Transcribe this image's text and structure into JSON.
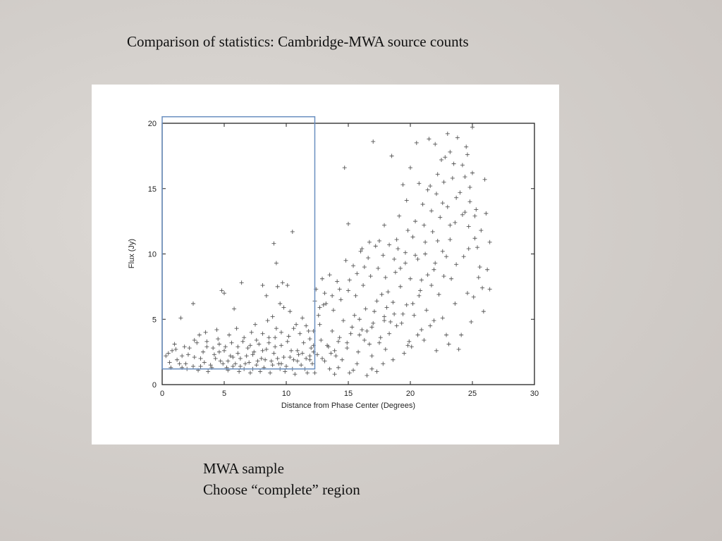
{
  "slide": {
    "title": "Comparison of statistics:  Cambridge-MWA source counts",
    "caption_line1": "MWA sample",
    "caption_line2": "Choose “complete” region"
  },
  "chart_data": {
    "type": "scatter",
    "marker": "+",
    "xlabel": "Distance from Phase Center (Degrees)",
    "ylabel": "Flux (Jy)",
    "xlim": [
      0,
      30
    ],
    "ylim": [
      0,
      20
    ],
    "xticks": [
      0,
      5,
      10,
      15,
      20,
      25,
      30
    ],
    "yticks": [
      0,
      5,
      10,
      15,
      20
    ],
    "grid": false,
    "point_color": "#555555",
    "selection_region": {
      "x": [
        0,
        12.3
      ],
      "y": [
        1.2,
        20.5
      ],
      "color": "#6a8fc0"
    },
    "points": [
      [
        0.5,
        2.4
      ],
      [
        0.8,
        2.6
      ],
      [
        1.2,
        1.9
      ],
      [
        1.6,
        2.2
      ],
      [
        1.9,
        1.6
      ],
      [
        2.2,
        2.8
      ],
      [
        2.5,
        1.4
      ],
      [
        2.8,
        3.2
      ],
      [
        3.1,
        2.0
      ],
      [
        3.4,
        1.7
      ],
      [
        3.6,
        2.9
      ],
      [
        3.9,
        1.5
      ],
      [
        4.2,
        2.3
      ],
      [
        4.5,
        3.5
      ],
      [
        4.7,
        1.8
      ],
      [
        5.0,
        2.6
      ],
      [
        5.2,
        1.3
      ],
      [
        5.4,
        3.8
      ],
      [
        5.7,
        2.1
      ],
      [
        5.9,
        1.6
      ],
      [
        6.1,
        2.9
      ],
      [
        6.3,
        1.4
      ],
      [
        6.5,
        3.3
      ],
      [
        6.8,
        2.2
      ],
      [
        7.0,
        1.7
      ],
      [
        7.2,
        4.0
      ],
      [
        7.4,
        2.5
      ],
      [
        7.6,
        1.5
      ],
      [
        7.8,
        3.1
      ],
      [
        8.0,
        2.0
      ],
      [
        8.2,
        1.3
      ],
      [
        8.4,
        2.7
      ],
      [
        8.6,
        3.6
      ],
      [
        8.8,
        1.8
      ],
      [
        9.0,
        2.4
      ],
      [
        9.2,
        4.3
      ],
      [
        9.4,
        1.6
      ],
      [
        9.6,
        3.0
      ],
      [
        9.8,
        2.1
      ],
      [
        10.0,
        1.4
      ],
      [
        10.2,
        3.7
      ],
      [
        10.4,
        2.6
      ],
      [
        10.6,
        1.9
      ],
      [
        10.8,
        4.6
      ],
      [
        11.0,
        2.3
      ],
      [
        11.2,
        1.5
      ],
      [
        11.4,
        3.2
      ],
      [
        11.6,
        2.0
      ],
      [
        11.8,
        4.1
      ],
      [
        12.0,
        2.8
      ],
      [
        1.0,
        3.1
      ],
      [
        2.0,
        1.2
      ],
      [
        3.0,
        3.8
      ],
      [
        4.0,
        1.3
      ],
      [
        4.4,
        4.2
      ],
      [
        6.0,
        4.3
      ],
      [
        6.6,
        1.2
      ],
      [
        7.3,
        1.2
      ],
      [
        8.5,
        4.9
      ],
      [
        9.5,
        1.2
      ],
      [
        10.5,
        1.2
      ],
      [
        11.5,
        1.2
      ],
      [
        12.1,
        1.6
      ],
      [
        3.3,
        2.5
      ],
      [
        5.5,
        2.2
      ],
      [
        6.9,
        2.8
      ],
      [
        8.1,
        2.6
      ],
      [
        9.1,
        2.9
      ],
      [
        10.9,
        2.6
      ],
      [
        11.9,
        2.2
      ],
      [
        1.5,
        5.1
      ],
      [
        2.5,
        6.2
      ],
      [
        4.8,
        7.2
      ],
      [
        5.8,
        5.8
      ],
      [
        6.4,
        7.8
      ],
      [
        7.5,
        4.6
      ],
      [
        8.4,
        6.8
      ],
      [
        8.9,
        5.2
      ],
      [
        9.5,
        6.2
      ],
      [
        10.3,
        5.6
      ],
      [
        5.0,
        7.0
      ],
      [
        9.7,
        7.8
      ],
      [
        8.1,
        7.6
      ],
      [
        9.3,
        7.5
      ],
      [
        10.1,
        7.6
      ],
      [
        9.2,
        9.3
      ],
      [
        9.0,
        10.8
      ],
      [
        10.5,
        11.7
      ],
      [
        9.8,
        5.9
      ],
      [
        11.3,
        5.1
      ],
      [
        12.5,
        2.3
      ],
      [
        12.8,
        3.4
      ],
      [
        13.1,
        1.8
      ],
      [
        13.4,
        2.9
      ],
      [
        13.7,
        4.1
      ],
      [
        14.0,
        2.2
      ],
      [
        14.3,
        3.6
      ],
      [
        14.6,
        4.9
      ],
      [
        14.9,
        2.8
      ],
      [
        15.2,
        3.9
      ],
      [
        15.5,
        5.3
      ],
      [
        15.8,
        2.5
      ],
      [
        16.1,
        4.2
      ],
      [
        16.4,
        5.8
      ],
      [
        16.7,
        3.1
      ],
      [
        17.0,
        4.7
      ],
      [
        17.3,
        6.4
      ],
      [
        17.6,
        3.6
      ],
      [
        17.9,
        5.2
      ],
      [
        18.2,
        7.1
      ],
      [
        12.6,
        5.3
      ],
      [
        13.0,
        6.1
      ],
      [
        13.8,
        5.7
      ],
      [
        14.4,
        6.5
      ],
      [
        15.0,
        7.2
      ],
      [
        15.6,
        6.8
      ],
      [
        16.2,
        7.6
      ],
      [
        16.8,
        8.3
      ],
      [
        17.4,
        8.9
      ],
      [
        18.0,
        8.2
      ],
      [
        12.4,
        7.3
      ],
      [
        12.9,
        8.1
      ],
      [
        13.5,
        8.4
      ],
      [
        14.1,
        7.9
      ],
      [
        14.8,
        9.5
      ],
      [
        15.4,
        9.1
      ],
      [
        16.0,
        10.2
      ],
      [
        16.6,
        9.7
      ],
      [
        17.2,
        10.6
      ],
      [
        17.8,
        9.9
      ],
      [
        14.7,
        16.6
      ],
      [
        15.0,
        12.3
      ],
      [
        17.0,
        18.6
      ],
      [
        16.1,
        10.4
      ],
      [
        13.2,
        6.2
      ],
      [
        12.7,
        4.6
      ],
      [
        13.3,
        3.0
      ],
      [
        14.5,
        1.9
      ],
      [
        15.7,
        1.6
      ],
      [
        16.9,
        2.2
      ],
      [
        18.4,
        4.8
      ],
      [
        18.6,
        6.3
      ],
      [
        18.8,
        8.6
      ],
      [
        19.0,
        10.4
      ],
      [
        19.2,
        7.5
      ],
      [
        19.4,
        5.4
      ],
      [
        19.6,
        9.3
      ],
      [
        19.8,
        11.8
      ],
      [
        20.0,
        8.1
      ],
      [
        20.2,
        6.2
      ],
      [
        20.4,
        12.5
      ],
      [
        20.6,
        9.6
      ],
      [
        20.8,
        7.2
      ],
      [
        21.0,
        13.8
      ],
      [
        21.2,
        10.9
      ],
      [
        21.4,
        8.4
      ],
      [
        21.6,
        15.2
      ],
      [
        21.8,
        11.7
      ],
      [
        22.0,
        9.3
      ],
      [
        22.2,
        16.1
      ],
      [
        22.4,
        12.8
      ],
      [
        22.6,
        10.2
      ],
      [
        22.8,
        17.4
      ],
      [
        23.0,
        13.6
      ],
      [
        23.2,
        11.1
      ],
      [
        23.4,
        15.8
      ],
      [
        23.6,
        12.4
      ],
      [
        23.8,
        18.9
      ],
      [
        24.0,
        14.7
      ],
      [
        24.2,
        16.8
      ],
      [
        24.4,
        13.2
      ],
      [
        24.6,
        17.6
      ],
      [
        24.8,
        15.1
      ],
      [
        25.0,
        19.7
      ],
      [
        25.2,
        12.9
      ],
      [
        25.4,
        10.5
      ],
      [
        25.6,
        9.0
      ],
      [
        25.8,
        7.4
      ],
      [
        26.0,
        15.7
      ],
      [
        26.2,
        8.8
      ],
      [
        26.4,
        10.9
      ],
      [
        26.4,
        7.3
      ],
      [
        25.9,
        5.6
      ],
      [
        24.9,
        4.8
      ],
      [
        23.9,
        2.7
      ],
      [
        22.9,
        3.8
      ],
      [
        21.9,
        4.9
      ],
      [
        20.9,
        4.2
      ],
      [
        19.9,
        3.3
      ],
      [
        18.9,
        4.5
      ],
      [
        18.5,
        17.5
      ],
      [
        19.4,
        15.3
      ],
      [
        20.5,
        18.5
      ],
      [
        21.5,
        18.8
      ],
      [
        22.5,
        17.2
      ],
      [
        23.5,
        16.9
      ],
      [
        24.5,
        18.2
      ],
      [
        20.0,
        16.6
      ],
      [
        22.0,
        18.4
      ],
      [
        23.0,
        19.2
      ],
      [
        25.1,
        6.7
      ],
      [
        24.3,
        9.8
      ],
      [
        23.3,
        8.1
      ],
      [
        22.3,
        6.9
      ],
      [
        21.3,
        5.7
      ],
      [
        20.3,
        5.3
      ],
      [
        19.3,
        4.7
      ],
      [
        18.3,
        3.9
      ],
      [
        17.5,
        3.2
      ],
      [
        16.5,
        4.1
      ],
      [
        12.2,
        3.0
      ],
      [
        13.6,
        2.4
      ],
      [
        14.2,
        3.3
      ],
      [
        15.3,
        4.4
      ],
      [
        15.9,
        5.0
      ],
      [
        16.3,
        3.4
      ],
      [
        17.1,
        5.6
      ],
      [
        17.7,
        6.9
      ],
      [
        18.1,
        5.9
      ],
      [
        18.7,
        9.6
      ],
      [
        19.1,
        12.9
      ],
      [
        19.7,
        14.1
      ],
      [
        20.7,
        15.4
      ],
      [
        21.1,
        12.2
      ],
      [
        21.7,
        13.3
      ],
      [
        22.1,
        14.6
      ],
      [
        22.7,
        15.5
      ],
      [
        23.7,
        14.3
      ],
      [
        24.7,
        12.1
      ],
      [
        25.3,
        13.4
      ],
      [
        4.3,
        2.0
      ],
      [
        3.7,
        1.0
      ],
      [
        2.9,
        1.1
      ],
      [
        1.4,
        1.6
      ],
      [
        0.3,
        2.2
      ],
      [
        0.7,
        1.3
      ],
      [
        1.8,
        2.9
      ],
      [
        2.6,
        3.4
      ],
      [
        3.5,
        4.0
      ],
      [
        4.6,
        3.1
      ],
      [
        5.3,
        1.1
      ],
      [
        6.2,
        1.0
      ],
      [
        7.1,
        0.9
      ],
      [
        7.9,
        1.0
      ],
      [
        8.7,
        0.9
      ],
      [
        9.9,
        1.0
      ],
      [
        10.7,
        0.8
      ],
      [
        11.7,
        0.9
      ],
      [
        12.3,
        0.9
      ],
      [
        13.9,
        0.8
      ],
      [
        14.2,
        1.3
      ],
      [
        15.4,
        1.1
      ],
      [
        16.5,
        0.7
      ],
      [
        17.3,
        1.0
      ],
      [
        15.1,
        0.9
      ],
      [
        13.5,
        1.2
      ],
      [
        16.9,
        1.2
      ],
      [
        17.8,
        1.6
      ],
      [
        18.6,
        1.9
      ],
      [
        19.5,
        2.4
      ],
      [
        20.1,
        2.9
      ],
      [
        21.1,
        3.4
      ],
      [
        22.1,
        2.6
      ],
      [
        23.1,
        3.1
      ],
      [
        24.1,
        3.8
      ],
      [
        20.6,
        3.8
      ],
      [
        19.8,
        3.0
      ],
      [
        18.0,
        2.7
      ],
      [
        21.6,
        4.5
      ],
      [
        22.6,
        5.1
      ],
      [
        23.6,
        6.2
      ],
      [
        24.6,
        7.0
      ],
      [
        25.5,
        8.2
      ],
      [
        25.7,
        11.8
      ],
      [
        26.1,
        13.1
      ],
      [
        25.0,
        16.2
      ],
      [
        24.4,
        15.9
      ],
      [
        23.2,
        17.8
      ],
      [
        22.6,
        13.9
      ],
      [
        21.4,
        14.9
      ],
      [
        20.2,
        11.3
      ],
      [
        19.6,
        10.1
      ],
      [
        18.9,
        11.1
      ],
      [
        18.3,
        10.7
      ],
      [
        17.9,
        12.2
      ],
      [
        17.5,
        11.0
      ],
      [
        16.7,
        10.9
      ],
      [
        16.3,
        9.0
      ],
      [
        15.7,
        8.5
      ],
      [
        15.1,
        8.0
      ],
      [
        14.3,
        7.3
      ],
      [
        13.7,
        6.8
      ],
      [
        13.1,
        7.0
      ],
      [
        12.7,
        5.9
      ],
      [
        12.3,
        6.4
      ],
      [
        12.2,
        4.1
      ],
      [
        11.9,
        3.5
      ],
      [
        11.6,
        4.5
      ],
      [
        11.1,
        3.9
      ],
      [
        10.6,
        4.3
      ],
      [
        10.1,
        3.3
      ],
      [
        9.6,
        4.0
      ],
      [
        9.1,
        3.6
      ],
      [
        8.6,
        3.2
      ],
      [
        8.1,
        3.9
      ],
      [
        7.6,
        3.4
      ],
      [
        7.1,
        3.0
      ],
      [
        6.6,
        3.6
      ],
      [
        6.1,
        2.4
      ],
      [
        5.6,
        3.2
      ],
      [
        5.1,
        2.9
      ],
      [
        4.6,
        2.5
      ],
      [
        4.1,
        2.8
      ],
      [
        3.6,
        3.3
      ],
      [
        3.1,
        1.4
      ],
      [
        2.6,
        2.1
      ],
      [
        2.1,
        2.3
      ],
      [
        1.6,
        1.3
      ],
      [
        1.1,
        2.7
      ],
      [
        0.6,
        1.7
      ],
      [
        9.3,
        2.0
      ],
      [
        8.3,
        1.9
      ],
      [
        7.3,
        2.3
      ],
      [
        6.3,
        2.0
      ],
      [
        5.3,
        1.8
      ],
      [
        10.3,
        2.1
      ],
      [
        11.3,
        2.4
      ],
      [
        12.2,
        2.5
      ],
      [
        9.6,
        1.6
      ],
      [
        8.9,
        1.5
      ],
      [
        7.7,
        1.8
      ],
      [
        6.7,
        1.6
      ],
      [
        5.7,
        1.4
      ],
      [
        4.9,
        1.6
      ],
      [
        10.9,
        1.8
      ],
      [
        11.9,
        1.9
      ],
      [
        12.9,
        2.0
      ],
      [
        13.9,
        2.6
      ],
      [
        14.9,
        3.2
      ],
      [
        15.9,
        3.8
      ],
      [
        16.9,
        4.4
      ],
      [
        17.9,
        4.9
      ],
      [
        18.7,
        5.4
      ],
      [
        19.7,
        6.1
      ],
      [
        20.7,
        6.8
      ],
      [
        21.7,
        7.6
      ],
      [
        22.7,
        8.3
      ],
      [
        23.7,
        9.2
      ],
      [
        24.7,
        10.4
      ],
      [
        25.2,
        11.2
      ],
      [
        19.2,
        8.9
      ],
      [
        20.4,
        9.9
      ],
      [
        21.2,
        10.0
      ],
      [
        22.2,
        11.0
      ],
      [
        23.2,
        12.2
      ],
      [
        24.2,
        13.0
      ],
      [
        24.8,
        14.0
      ],
      [
        22.9,
        9.8
      ],
      [
        21.9,
        8.8
      ],
      [
        20.9,
        8.0
      ]
    ]
  }
}
